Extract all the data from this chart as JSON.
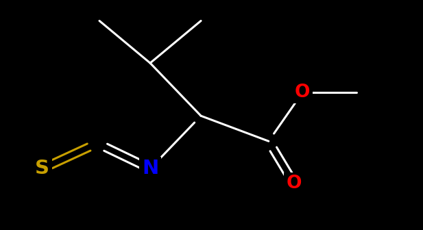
{
  "background_color": "#000000",
  "bond_color": "#FFFFFF",
  "atom_colors": {
    "S": "#C8A000",
    "N": "#0000FF",
    "O": "#FF0000",
    "C": "#FFFFFF"
  },
  "bond_width": 2.2,
  "font_size": 16,
  "figsize": [
    6.17,
    3.36
  ],
  "dpi": 100,
  "xlim": [
    0,
    10
  ],
  "ylim": [
    0,
    5.44
  ]
}
